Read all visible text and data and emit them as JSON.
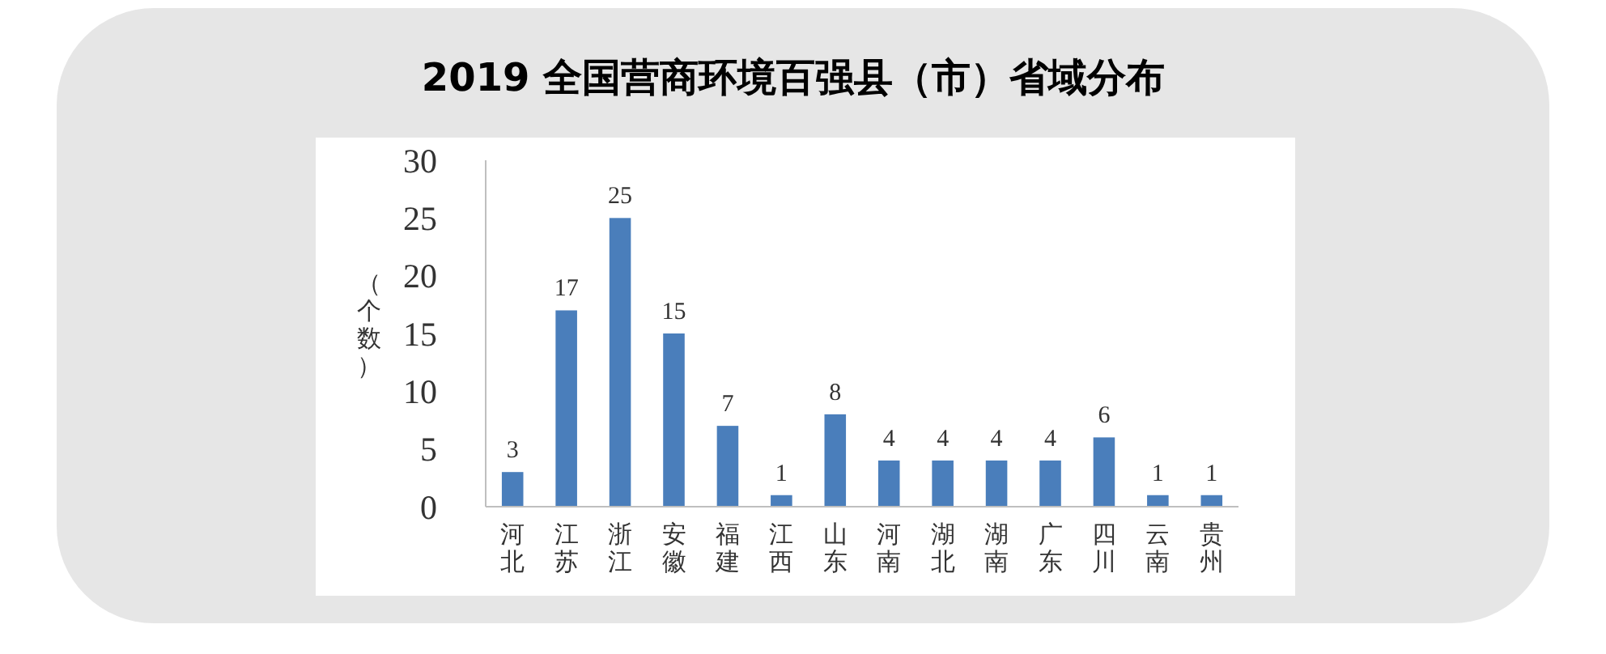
{
  "chart_data": {
    "type": "bar",
    "title": "2019 全国营商环境百强县（市）省域分布",
    "ylabel": "（个数）",
    "categories": [
      "河北",
      "江苏",
      "浙江",
      "安徽",
      "福建",
      "江西",
      "山东",
      "河南",
      "湖北",
      "湖南",
      "广东",
      "四川",
      "云南",
      "贵州"
    ],
    "values": [
      3,
      17,
      25,
      15,
      7,
      1,
      8,
      4,
      4,
      4,
      4,
      6,
      1,
      1
    ],
    "color": "#4a7ebb",
    "ylim": [
      0,
      30
    ],
    "yticks": [
      0,
      5,
      10,
      15,
      20,
      25,
      30
    ],
    "grid": false,
    "data_labels": true
  }
}
